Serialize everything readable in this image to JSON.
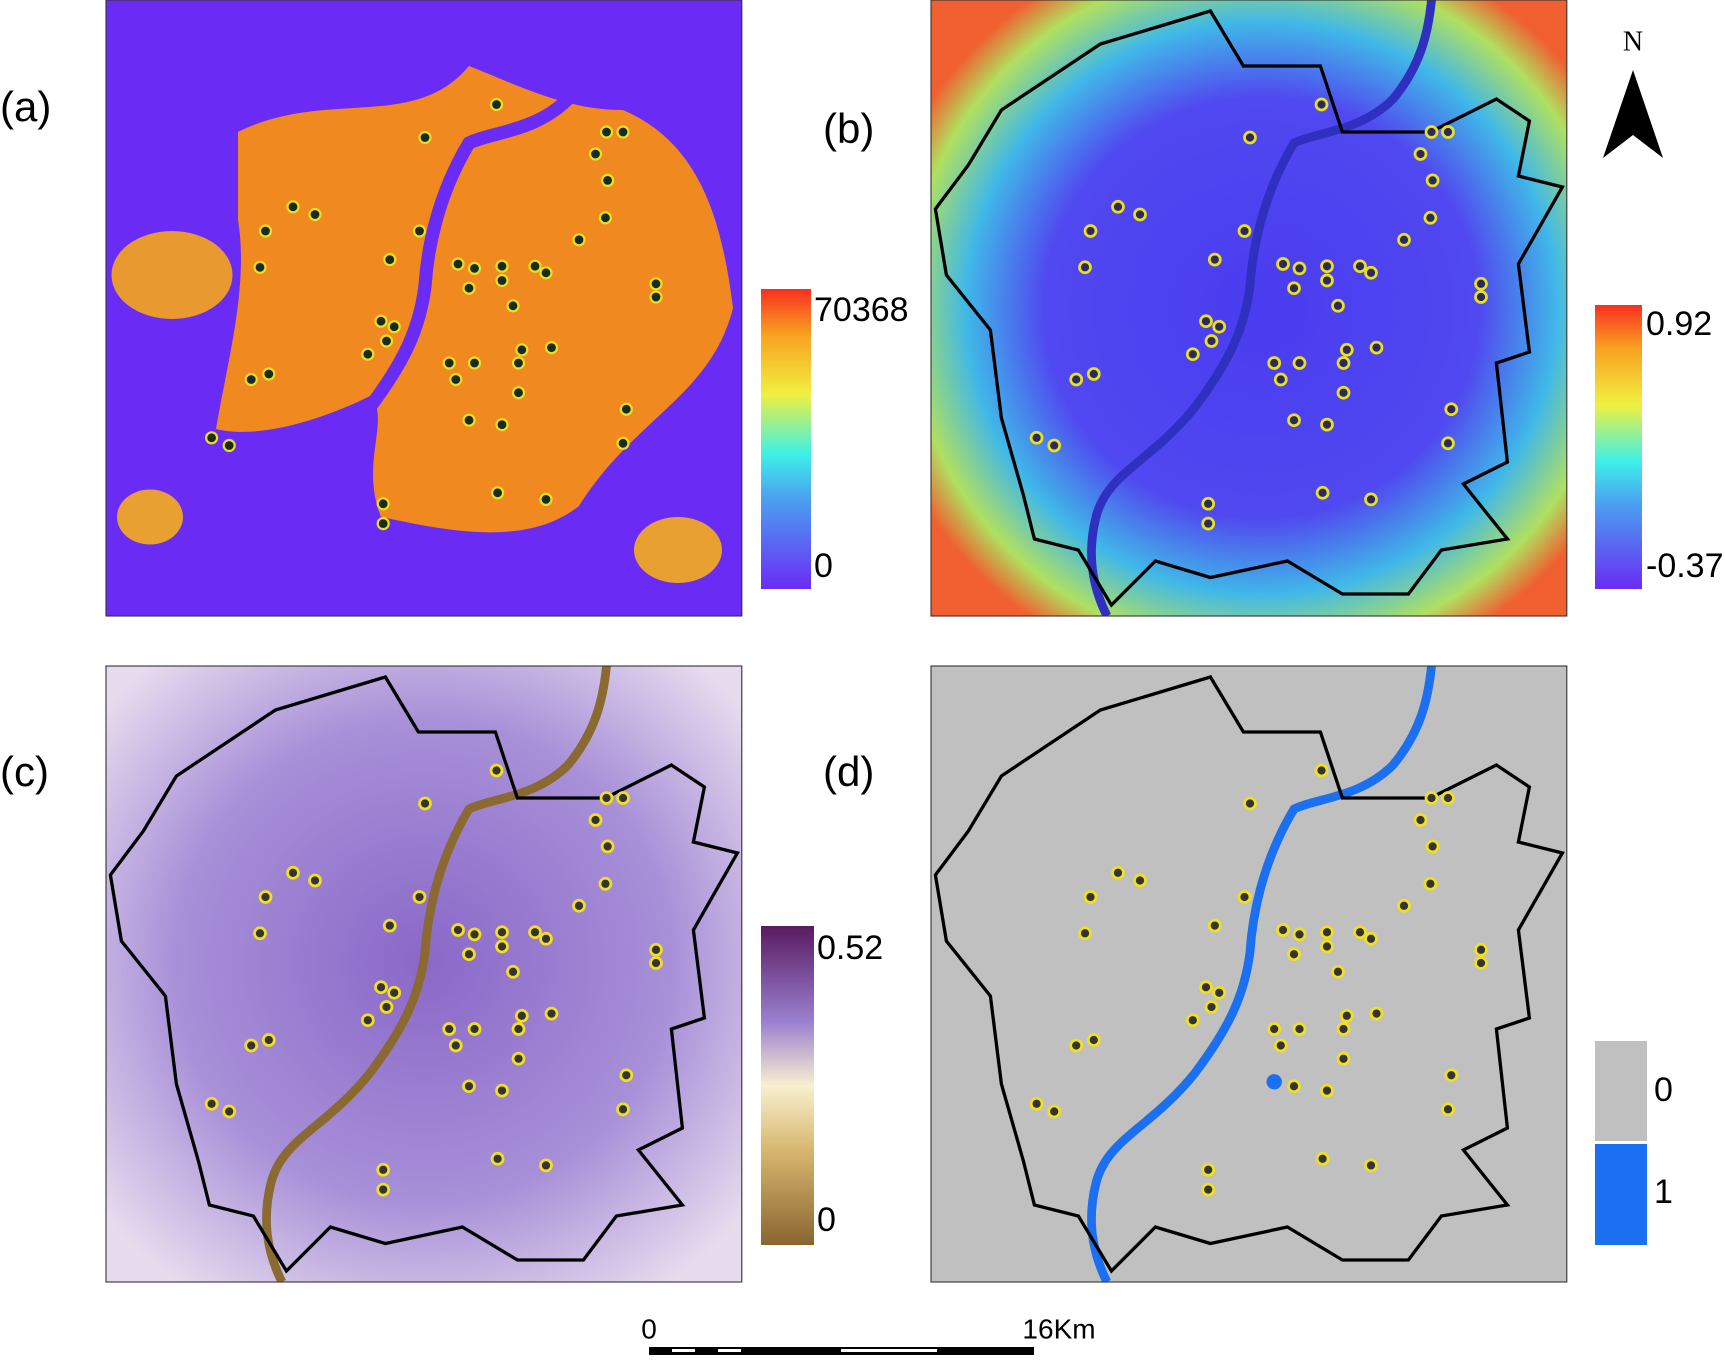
{
  "panels": [
    {
      "label": "(a)",
      "legend": [
        "70368",
        "0"
      ]
    },
    {
      "label": "(b)",
      "legend": [
        "0.92",
        "-0.37"
      ]
    },
    {
      "label": "(c)",
      "legend": [
        "0.52",
        "0"
      ]
    },
    {
      "label": "(d)",
      "legend": [
        "0",
        "1"
      ]
    }
  ],
  "north_arrow": {
    "label": "N"
  },
  "scale_bar": {
    "start": "0",
    "end": "16Km"
  }
}
